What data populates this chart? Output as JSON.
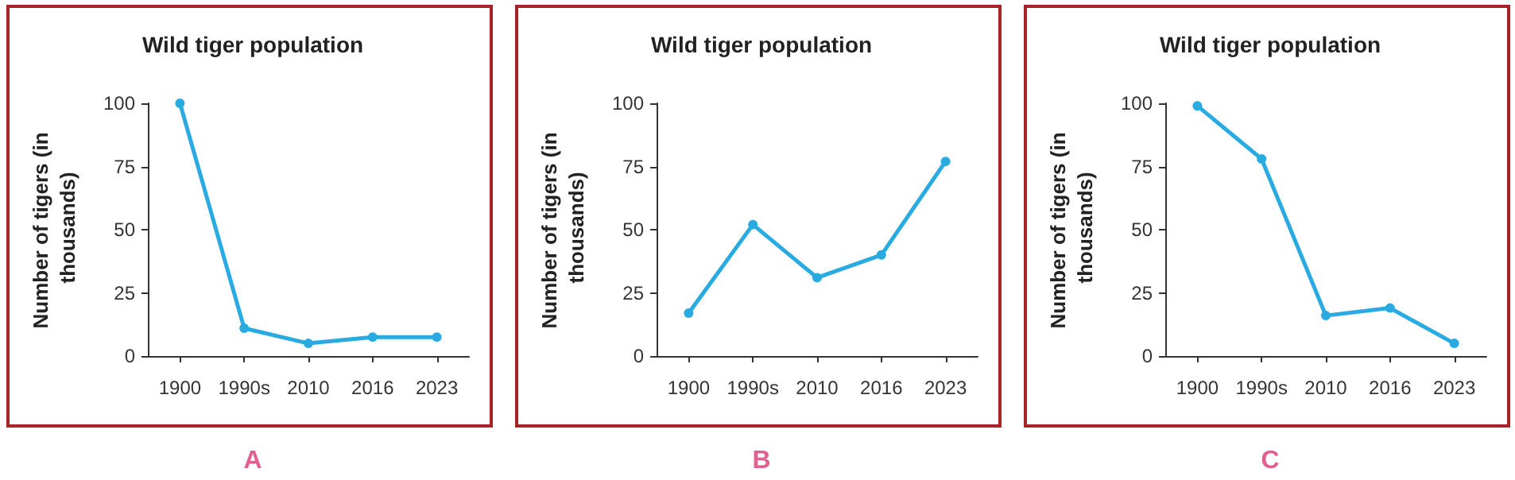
{
  "chart_data": [
    {
      "type": "line",
      "title": "Wild tiger population",
      "ylabel": "Number of tigers (in thousands)",
      "categories": [
        "1900",
        "1990s",
        "2010",
        "2016",
        "2023"
      ],
      "series": [
        {
          "color": "#29abe2",
          "values": [
            100,
            11,
            5,
            7.5,
            7.5
          ]
        }
      ],
      "ylim": [
        0,
        100
      ],
      "yticks": [
        0,
        25,
        50,
        75,
        100
      ],
      "grid": false,
      "marker": "circle",
      "annotations": [
        "A"
      ]
    },
    {
      "type": "line",
      "title": "Wild tiger population",
      "ylabel": "Number of tigers (in thousands)",
      "categories": [
        "1900",
        "1990s",
        "2010",
        "2016",
        "2023"
      ],
      "series": [
        {
          "color": "#29abe2",
          "values": [
            17,
            52,
            31,
            40,
            77
          ]
        }
      ],
      "ylim": [
        0,
        100
      ],
      "yticks": [
        0,
        25,
        50,
        75,
        100
      ],
      "grid": false,
      "marker": "circle",
      "annotations": [
        "B"
      ]
    },
    {
      "type": "line",
      "title": "Wild tiger population",
      "ylabel": "Number of tigers (in thousands)",
      "categories": [
        "1900",
        "1990s",
        "2010",
        "2016",
        "2023"
      ],
      "series": [
        {
          "color": "#29abe2",
          "values": [
            99,
            78,
            16,
            19,
            5
          ]
        }
      ],
      "ylim": [
        0,
        100
      ],
      "yticks": [
        0,
        25,
        50,
        75,
        100
      ],
      "grid": false,
      "marker": "circle",
      "annotations": [
        "C"
      ]
    }
  ]
}
